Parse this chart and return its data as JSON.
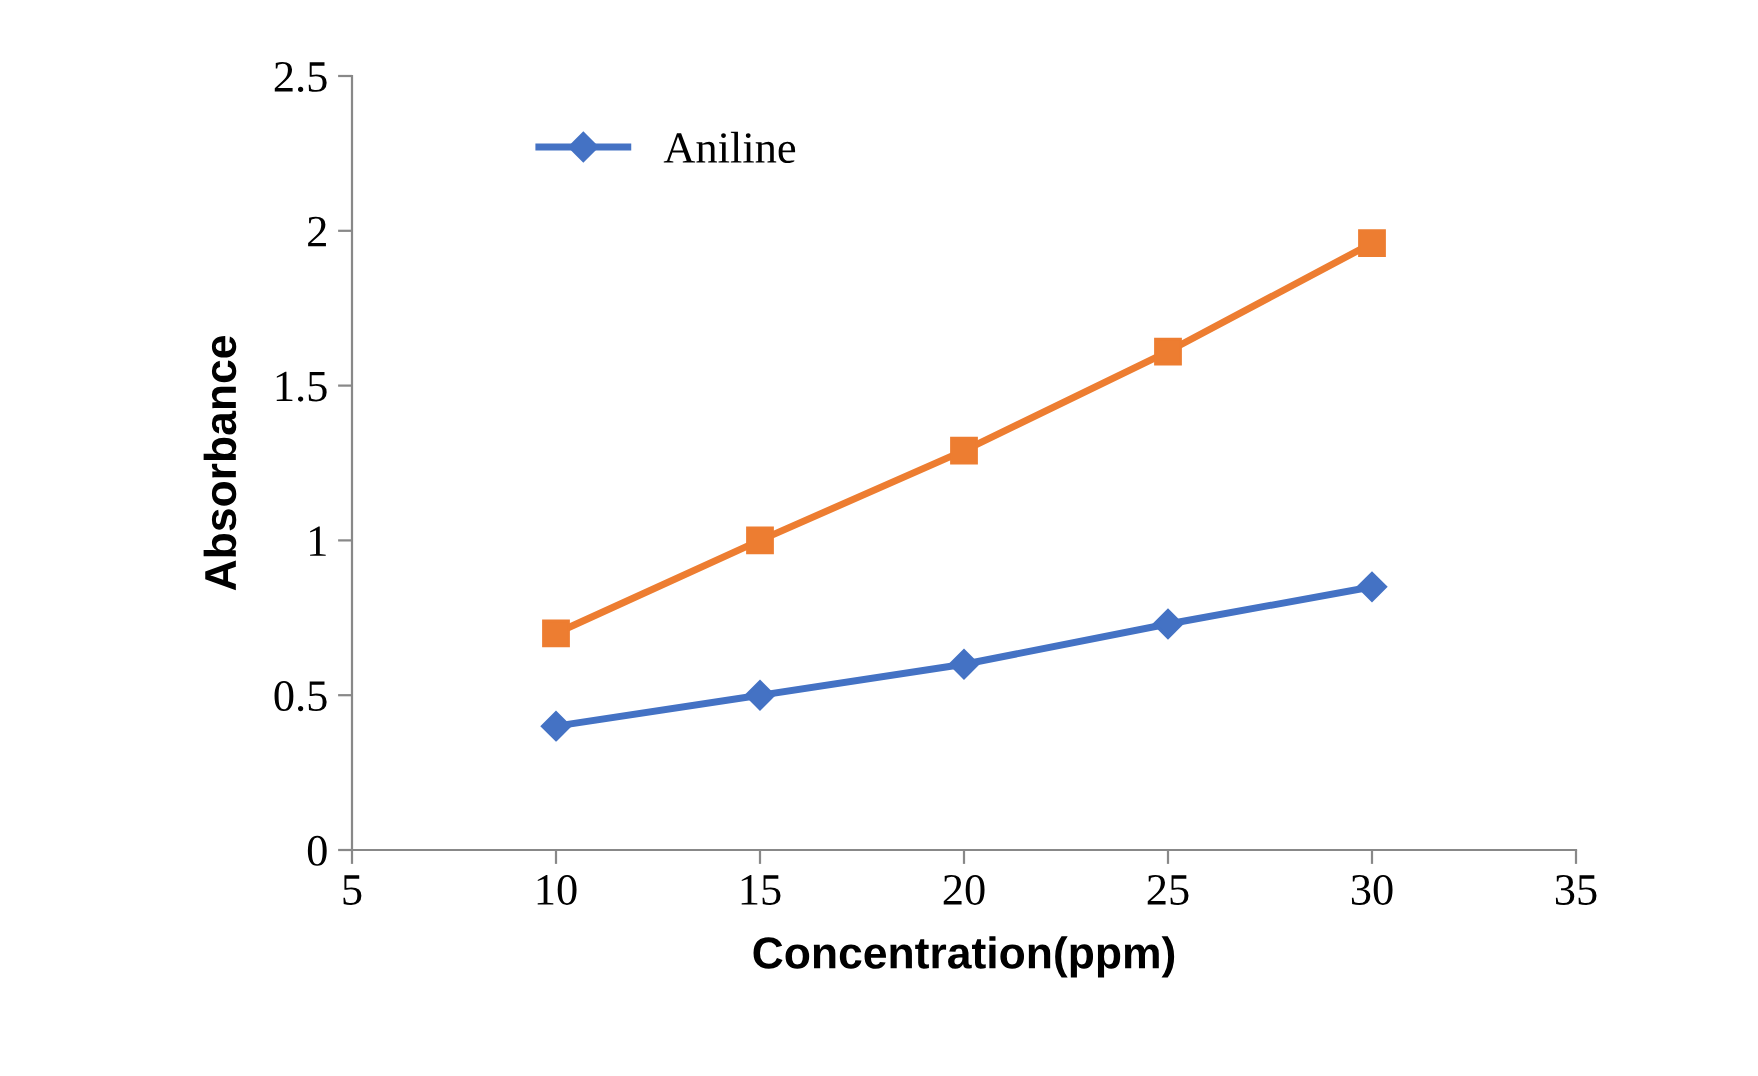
{
  "chart_data": {
    "type": "line",
    "xlabel": "Concentration(ppm)",
    "ylabel": "Absorbance",
    "x": [
      10,
      15,
      20,
      25,
      30
    ],
    "series": [
      {
        "name": "Aniline",
        "color": "#4472c4",
        "marker": "diamond",
        "values": [
          0.4,
          0.5,
          0.6,
          0.73,
          0.85
        ]
      },
      {
        "color": "#ed7d31",
        "marker": "square",
        "values": [
          0.7,
          1.0,
          1.29,
          1.61,
          1.96
        ]
      }
    ],
    "xlim": [
      5,
      35
    ],
    "xticks": [
      5,
      10,
      15,
      20,
      25,
      30,
      35
    ],
    "ylim": [
      0,
      2.5
    ],
    "yticks": [
      0,
      0.5,
      1,
      1.5,
      2,
      2.5
    ],
    "grid": false,
    "legend": "top left",
    "line_style": "solid"
  }
}
